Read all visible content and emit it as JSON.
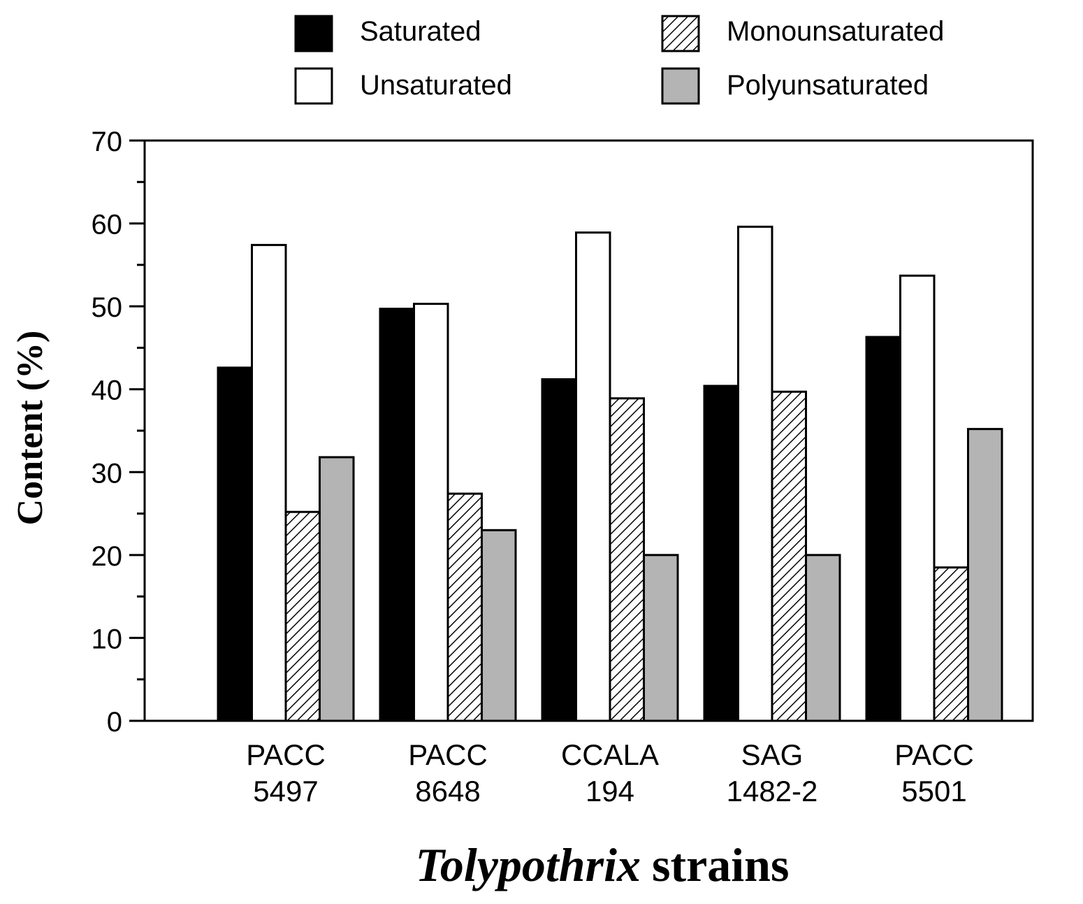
{
  "chart_data": {
    "type": "bar",
    "categories": [
      [
        "PACC",
        "5497"
      ],
      [
        "PACC",
        "8648"
      ],
      [
        "CCALA",
        "194"
      ],
      [
        "SAG",
        "1482-2"
      ],
      [
        "PACC",
        "5501"
      ]
    ],
    "series": [
      {
        "name": "Saturated",
        "style": "solid-black",
        "values": [
          42.6,
          49.7,
          41.2,
          40.4,
          46.3
        ]
      },
      {
        "name": "Unsaturated",
        "style": "white",
        "values": [
          57.4,
          50.3,
          58.9,
          59.6,
          53.7
        ]
      },
      {
        "name": "Monounsaturated",
        "style": "hatched",
        "values": [
          25.2,
          27.4,
          38.9,
          39.7,
          18.5
        ]
      },
      {
        "name": "Polyunsaturated",
        "style": "gray",
        "values": [
          31.8,
          23.0,
          20.0,
          20.0,
          35.2
        ]
      }
    ],
    "ylabel": "Content (%)",
    "xlabel_italic": "Tolypothrix",
    "xlabel_rest": "strains",
    "ylim": [
      0,
      70
    ],
    "yticks": [
      0,
      10,
      20,
      30,
      40,
      50,
      60,
      70
    ],
    "legend_position": "top",
    "colors": {
      "solid-black": "#000000",
      "white": "#ffffff",
      "gray": "#b4b4b4",
      "hatch_line": "#000000"
    }
  }
}
